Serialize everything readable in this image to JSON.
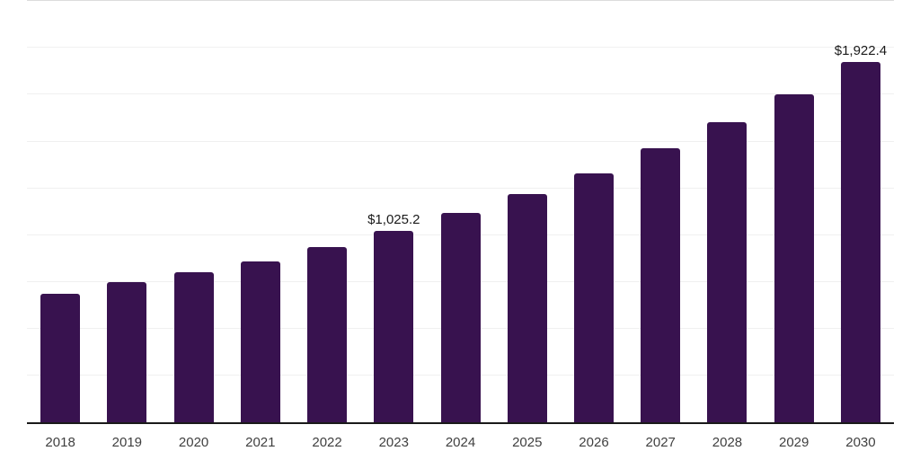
{
  "chart_data": {
    "type": "bar",
    "title": "",
    "xlabel": "",
    "ylabel": "",
    "categories": [
      "2018",
      "2019",
      "2020",
      "2021",
      "2022",
      "2023",
      "2024",
      "2025",
      "2026",
      "2027",
      "2028",
      "2029",
      "2030"
    ],
    "values": [
      688,
      750,
      803,
      859,
      939,
      1025.2,
      1119,
      1220,
      1332,
      1463,
      1602,
      1753,
      1922.4
    ],
    "value_labels": [
      null,
      null,
      null,
      null,
      null,
      "$1,025.2",
      null,
      null,
      null,
      null,
      null,
      null,
      "$1,922.4"
    ],
    "ylim": [
      0,
      2250
    ],
    "grid_interval": 250,
    "grid": true,
    "y_axis_labels_visible": false,
    "legend": false,
    "colors": {
      "bar": "#38124F",
      "axis": "#1A1A1A",
      "gridline": "#F0F0F0",
      "gridline_top": "#DCDCDC",
      "value_label": "#1A1A1A",
      "tick_label": "#404040",
      "background": "#FFFFFF"
    }
  }
}
